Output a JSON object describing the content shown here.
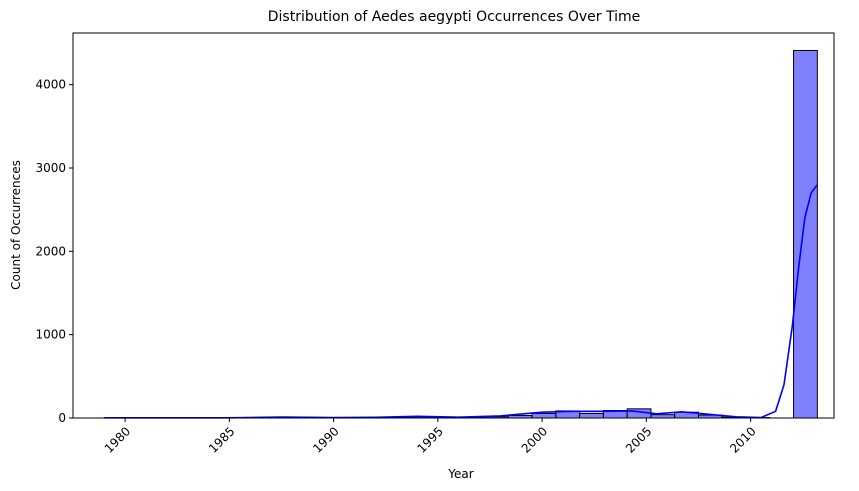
{
  "chart_data": {
    "type": "bar",
    "title": "Distribution of Aedes aegypti Occurrences Over Time",
    "xlabel": "Year",
    "ylabel": "Count of Occurrences",
    "xlim": [
      1977.5,
      2014.0
    ],
    "ylim": [
      0,
      4620
    ],
    "x_ticks": [
      1980,
      1985,
      1990,
      1995,
      2000,
      2005,
      2010
    ],
    "x_tick_labels": [
      "1980",
      "1985",
      "1990",
      "1995",
      "2000",
      "2005",
      "2010"
    ],
    "y_ticks": [
      0,
      1000,
      2000,
      3000,
      4000
    ],
    "y_tick_labels": [
      "0",
      "1000",
      "2000",
      "3000",
      "4000"
    ],
    "bin_width": 1.14,
    "bins": [
      {
        "start": 1979.0,
        "count": 2
      },
      {
        "start": 1980.14,
        "count": 1
      },
      {
        "start": 1981.28,
        "count": 0
      },
      {
        "start": 1982.42,
        "count": 1
      },
      {
        "start": 1983.56,
        "count": 0
      },
      {
        "start": 1984.7,
        "count": 2
      },
      {
        "start": 1985.84,
        "count": 3
      },
      {
        "start": 1986.98,
        "count": 10
      },
      {
        "start": 1988.12,
        "count": 2
      },
      {
        "start": 1989.26,
        "count": 1
      },
      {
        "start": 1990.4,
        "count": 2
      },
      {
        "start": 1991.54,
        "count": 5
      },
      {
        "start": 1992.68,
        "count": 12
      },
      {
        "start": 1993.82,
        "count": 15
      },
      {
        "start": 1994.96,
        "count": 5
      },
      {
        "start": 1996.1,
        "count": 8
      },
      {
        "start": 1997.24,
        "count": 15
      },
      {
        "start": 1998.38,
        "count": 30
      },
      {
        "start": 1999.52,
        "count": 55
      },
      {
        "start": 2000.66,
        "count": 85
      },
      {
        "start": 2001.8,
        "count": 55
      },
      {
        "start": 2002.94,
        "count": 90
      },
      {
        "start": 2004.08,
        "count": 110
      },
      {
        "start": 2005.22,
        "count": 40
      },
      {
        "start": 2006.36,
        "count": 70
      },
      {
        "start": 2007.5,
        "count": 35
      },
      {
        "start": 2008.64,
        "count": 10
      },
      {
        "start": 2009.78,
        "count": 5
      },
      {
        "start": 2010.92,
        "count": 0
      },
      {
        "start": 2012.06,
        "count": 4410
      }
    ],
    "kde": [
      [
        1979,
        2
      ],
      [
        1982,
        2
      ],
      [
        1985,
        3
      ],
      [
        1987.5,
        12
      ],
      [
        1990,
        5
      ],
      [
        1992,
        8
      ],
      [
        1994,
        20
      ],
      [
        1996,
        10
      ],
      [
        1998,
        25
      ],
      [
        2000,
        70
      ],
      [
        2001.5,
        80
      ],
      [
        2003,
        80
      ],
      [
        2004.3,
        85
      ],
      [
        2005.5,
        50
      ],
      [
        2006.7,
        75
      ],
      [
        2008,
        45
      ],
      [
        2009.3,
        15
      ],
      [
        2010.5,
        5
      ],
      [
        2011.2,
        80
      ],
      [
        2011.6,
        400
      ],
      [
        2012,
        1100
      ],
      [
        2012.3,
        1800
      ],
      [
        2012.6,
        2400
      ],
      [
        2012.9,
        2700
      ],
      [
        2013.2,
        2800
      ]
    ],
    "colors": {
      "bar_fill": "#8080ff",
      "bar_edge": "#000000",
      "kde_line": "#0000ff"
    },
    "grid": false,
    "legend": "none"
  }
}
